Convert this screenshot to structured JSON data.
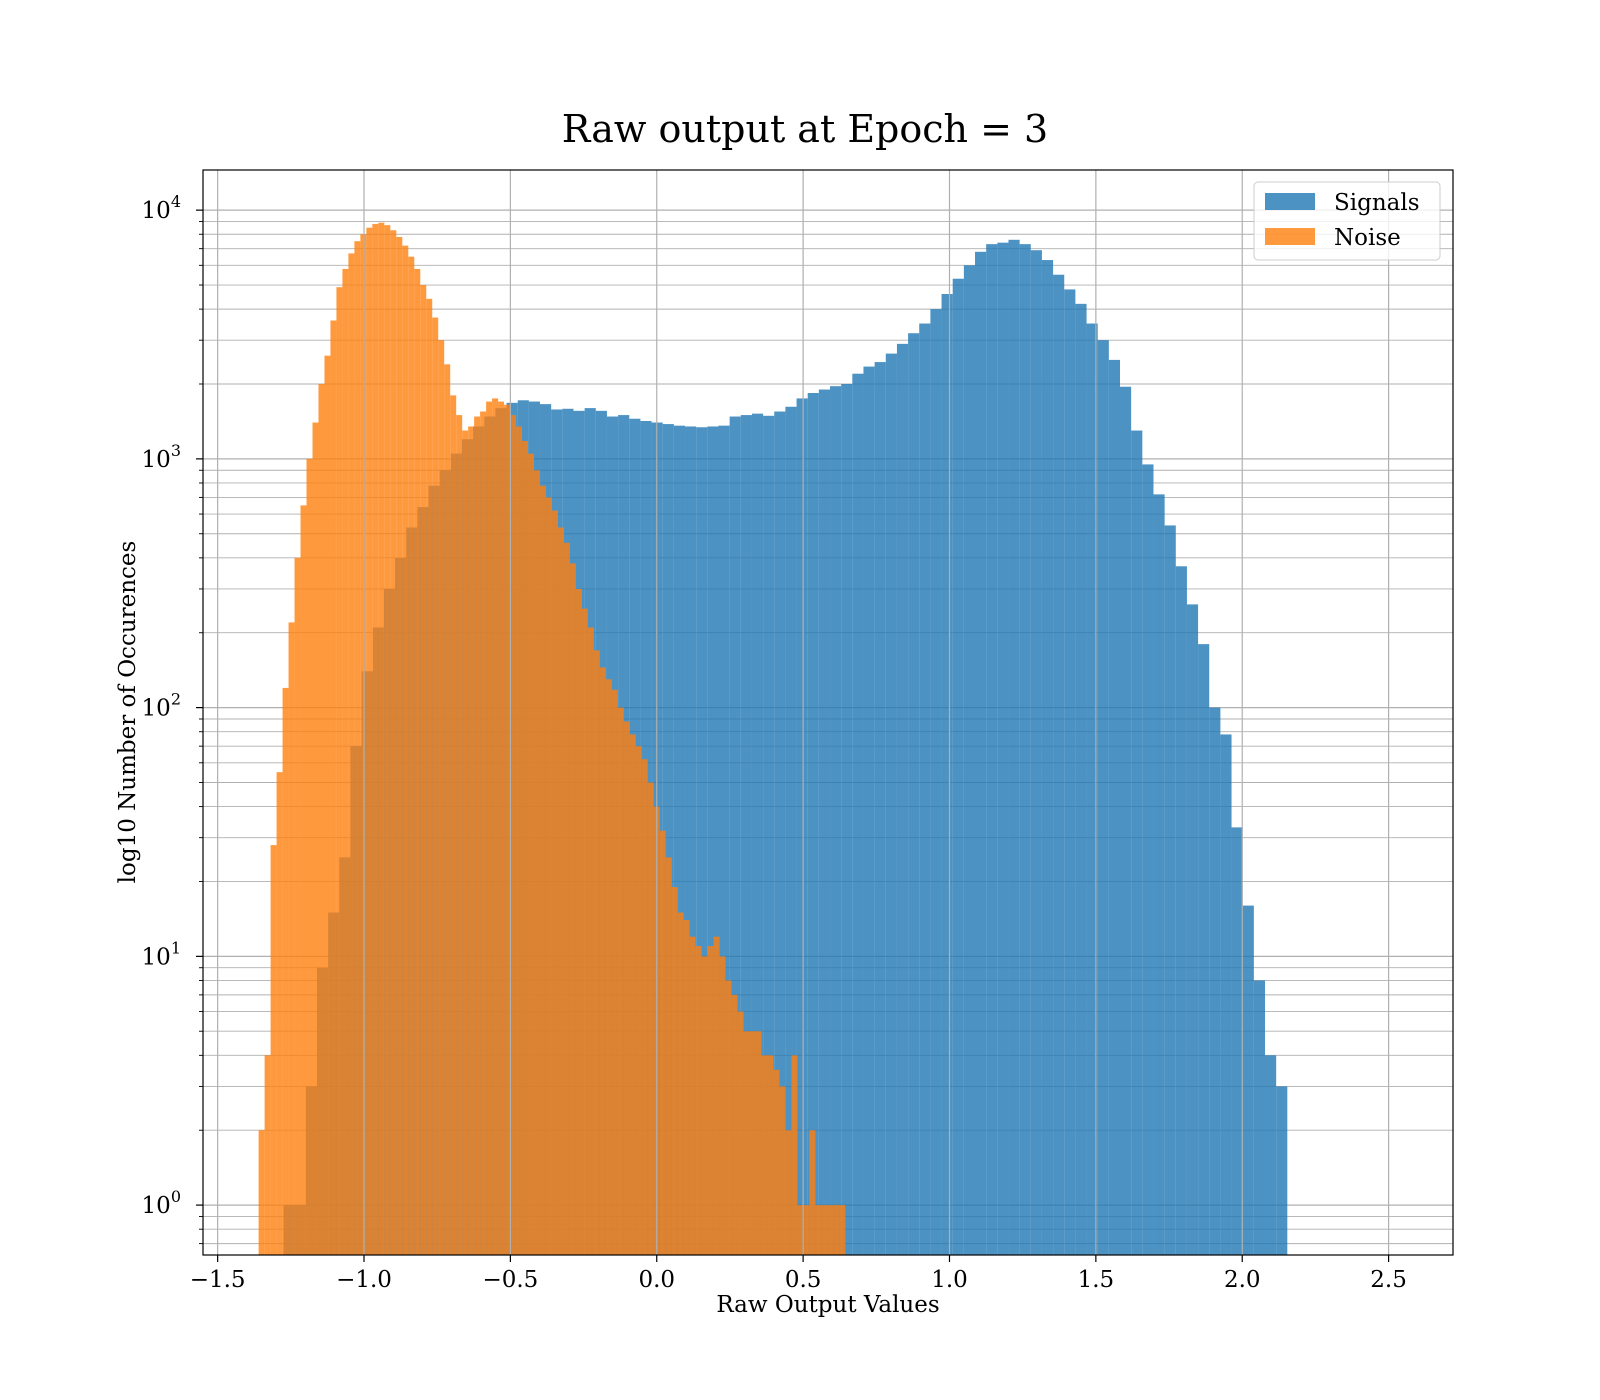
{
  "chart_data": {
    "type": "bar",
    "title": "Raw output at Epoch = 3",
    "xlabel": "Raw Output Values",
    "ylabel": "log10 Number of Occurences",
    "yscale": "log",
    "xlim": [
      -1.55,
      2.72
    ],
    "ylim": [
      0.63,
      14500
    ],
    "xticks": [
      -1.5,
      -1.0,
      -0.5,
      0.0,
      0.5,
      1.0,
      1.5,
      2.0,
      2.5
    ],
    "xtick_labels": [
      "−1.5",
      "−1.0",
      "−0.5",
      "0.0",
      "0.5",
      "1.0",
      "1.5",
      "2.0",
      "2.5"
    ],
    "yticks": [
      {
        "value": 1,
        "base": "10",
        "exp": "0"
      },
      {
        "value": 10,
        "base": "10",
        "exp": "1"
      },
      {
        "value": 100,
        "base": "10",
        "exp": "2"
      },
      {
        "value": 1000,
        "base": "10",
        "exp": "3"
      },
      {
        "value": 10000,
        "base": "10",
        "exp": "4"
      }
    ],
    "grid": true,
    "legend_position": "top-right",
    "series": [
      {
        "name": "Signals",
        "color": "#1f77b4",
        "alpha": 0.8,
        "bin_start": -1.275,
        "bin_width": 0.0381,
        "values": [
          1,
          1,
          3,
          9,
          15,
          25,
          70,
          140,
          210,
          300,
          400,
          530,
          640,
          780,
          900,
          1050,
          1200,
          1350,
          1480,
          1600,
          1680,
          1720,
          1700,
          1660,
          1580,
          1590,
          1560,
          1600,
          1560,
          1480,
          1500,
          1450,
          1420,
          1400,
          1380,
          1360,
          1350,
          1340,
          1350,
          1360,
          1480,
          1500,
          1520,
          1490,
          1550,
          1620,
          1750,
          1840,
          1900,
          1960,
          2000,
          2200,
          2350,
          2450,
          2650,
          2900,
          3200,
          3500,
          4000,
          4600,
          5300,
          6000,
          6800,
          7300,
          7400,
          7600,
          7300,
          6900,
          6300,
          5500,
          4800,
          4200,
          3500,
          3000,
          2500,
          1950,
          1300,
          950,
          720,
          540,
          370,
          260,
          180,
          100,
          78,
          33,
          16,
          8,
          4,
          3
        ]
      },
      {
        "name": "Noise",
        "color": "#ff7f0e",
        "alpha": 0.8,
        "bin_start": -1.36,
        "bin_width": 0.02045,
        "values": [
          2,
          4,
          28,
          55,
          120,
          220,
          400,
          650,
          1000,
          1400,
          2000,
          2600,
          3600,
          4900,
          5800,
          6700,
          7500,
          8000,
          8500,
          8800,
          8900,
          8700,
          8300,
          7800,
          7200,
          6500,
          5800,
          5000,
          4400,
          3700,
          3000,
          2400,
          1800,
          1500,
          1300,
          1350,
          1480,
          1550,
          1700,
          1750,
          1700,
          1650,
          1500,
          1350,
          1180,
          1050,
          900,
          780,
          700,
          620,
          530,
          460,
          380,
          300,
          250,
          210,
          170,
          145,
          130,
          118,
          100,
          88,
          78,
          70,
          62,
          50,
          40,
          32,
          25,
          19,
          15,
          14,
          12,
          11,
          10,
          11,
          12,
          10,
          8,
          7,
          6,
          5,
          5,
          5,
          4,
          4,
          3.5,
          3,
          2,
          4,
          1,
          1,
          2,
          1,
          1,
          1,
          1,
          1
        ]
      }
    ]
  }
}
